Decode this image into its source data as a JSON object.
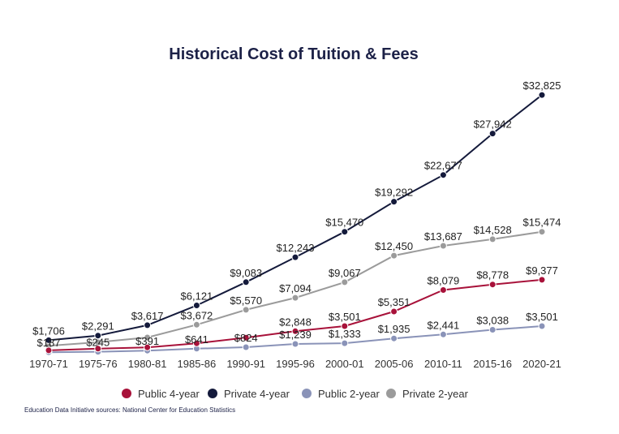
{
  "chart_data": {
    "type": "line",
    "title": "Historical Cost of Tuition & Fees",
    "xlabel": "",
    "ylabel": "",
    "categories": [
      "1970-71",
      "1975-76",
      "1980-81",
      "1985-86",
      "1990-91",
      "1995-96",
      "2000-01",
      "2005-06",
      "2010-11",
      "2015-16",
      "2020-21"
    ],
    "ylim": [
      0,
      35000
    ],
    "grid": false,
    "legend_position": "bottom",
    "series": [
      {
        "name": "Public 4-year",
        "color": "#a8123a",
        "values": [
          427,
          642,
          804,
          1318,
          2035,
          2848,
          3501,
          5351,
          8079,
          8778,
          9377
        ],
        "labels": [
          "",
          "",
          "",
          "",
          "",
          "$2,848",
          "$3,501",
          "$5,351",
          "$8,079",
          "$8,778",
          "$9,377"
        ]
      },
      {
        "name": "Private 4-year",
        "color": "#141a3b",
        "values": [
          1706,
          2291,
          3617,
          6121,
          9083,
          12243,
          15470,
          19292,
          22677,
          27942,
          32825
        ],
        "labels": [
          "$1,706",
          "$2,291",
          "$3,617",
          "$6,121",
          "$9,083",
          "$12,243",
          "$15,470",
          "$19,292",
          "$22,677",
          "$27,942",
          "$32,825"
        ]
      },
      {
        "name": "Public 2-year",
        "color": "#8a93b8",
        "values": [
          187,
          245,
          391,
          641,
          824,
          1239,
          1333,
          1935,
          2441,
          3038,
          3501
        ],
        "labels": [
          "$187",
          "$245",
          "$391",
          "$641",
          "$824",
          "$1,239",
          "$1,333",
          "$1,935",
          "$2,441",
          "$3,038",
          "$3,501"
        ]
      },
      {
        "name": "Private 2-year",
        "color": "#9b9b9b",
        "values": [
          1000,
          1450,
          2060,
          3672,
          5570,
          7094,
          9067,
          12450,
          13687,
          14528,
          15474
        ],
        "labels": [
          "",
          "",
          "",
          "$3,672",
          "$5,570",
          "$7,094",
          "$9,067",
          "$12,450",
          "$13,687",
          "$14,528",
          "$15,474"
        ]
      }
    ]
  },
  "source_note": "Education Data Initiative sources: National Center for Education Statistics"
}
